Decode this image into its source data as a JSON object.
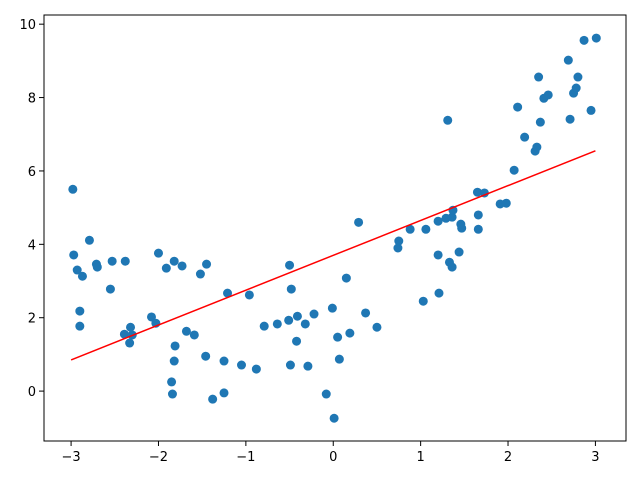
{
  "chart_data": {
    "type": "scatter",
    "x": [
      -2.98,
      -2.97,
      -2.93,
      -2.87,
      -2.9,
      -2.9,
      -2.79,
      -2.71,
      -2.7,
      -2.53,
      -2.55,
      -2.38,
      -2.39,
      -2.32,
      -2.3,
      -2.33,
      -2.08,
      -2.03,
      -2.0,
      -1.91,
      -1.82,
      -1.73,
      -1.81,
      -1.82,
      -1.85,
      -1.84,
      -1.68,
      -1.59,
      -1.52,
      -1.45,
      -1.46,
      -1.38,
      -1.25,
      -1.25,
      -1.21,
      -1.05,
      -0.96,
      -0.88,
      -0.79,
      -0.64,
      -0.51,
      -0.5,
      -0.48,
      -0.49,
      -0.42,
      -0.41,
      -0.32,
      -0.29,
      -0.22,
      -0.08,
      -0.01,
      0.01,
      0.05,
      0.07,
      0.15,
      0.19,
      0.29,
      0.37,
      0.5,
      0.74,
      0.75,
      0.88,
      1.03,
      1.06,
      1.2,
      1.21,
      1.2,
      1.29,
      1.31,
      1.33,
      1.36,
      1.36,
      1.37,
      1.44,
      1.47,
      1.46,
      1.65,
      1.66,
      1.66,
      1.73,
      1.91,
      1.98,
      2.07,
      2.11,
      2.19,
      2.31,
      2.33,
      2.35,
      2.37,
      2.41,
      2.46,
      2.69,
      2.71,
      2.75,
      2.78,
      2.8,
      2.87,
      2.95,
      3.01
    ],
    "y": [
      5.5,
      3.71,
      3.3,
      3.13,
      2.18,
      1.77,
      4.11,
      3.46,
      3.38,
      3.54,
      2.78,
      3.54,
      1.55,
      1.74,
      1.53,
      1.31,
      2.02,
      1.85,
      3.76,
      3.35,
      3.54,
      3.41,
      1.23,
      0.82,
      0.25,
      -0.08,
      1.63,
      1.53,
      3.19,
      3.46,
      0.95,
      -0.22,
      0.82,
      -0.05,
      2.67,
      0.71,
      2.62,
      0.6,
      1.77,
      1.83,
      1.93,
      3.43,
      2.78,
      0.71,
      1.36,
      2.04,
      1.83,
      0.68,
      2.1,
      -0.08,
      2.26,
      -0.74,
      1.47,
      0.87,
      3.08,
      1.58,
      4.6,
      2.13,
      1.74,
      3.9,
      4.09,
      4.41,
      2.45,
      4.41,
      3.71,
      2.67,
      4.63,
      4.71,
      7.38,
      3.51,
      3.38,
      4.74,
      4.93,
      3.79,
      4.44,
      4.55,
      5.42,
      4.8,
      4.41,
      5.4,
      5.1,
      5.12,
      6.02,
      7.74,
      6.92,
      6.54,
      6.65,
      8.56,
      7.33,
      7.98,
      8.07,
      9.02,
      7.41,
      8.12,
      8.26,
      8.56,
      9.56,
      7.65,
      9.62
    ],
    "color": "#1f77b4",
    "line": {
      "x": [
        -3,
        3
      ],
      "y": [
        0.85,
        6.55
      ],
      "color": "#ff0000"
    },
    "xlim": [
      -3.31,
      3.35
    ],
    "ylim": [
      -1.36,
      10.25
    ],
    "xticks": [
      {
        "value": -3,
        "label": "−3"
      },
      {
        "value": -2,
        "label": "−2"
      },
      {
        "value": -1,
        "label": "−1"
      },
      0,
      1,
      2,
      3
    ],
    "yticks": [
      0,
      2,
      4,
      6,
      8,
      10
    ],
    "grid": false
  }
}
